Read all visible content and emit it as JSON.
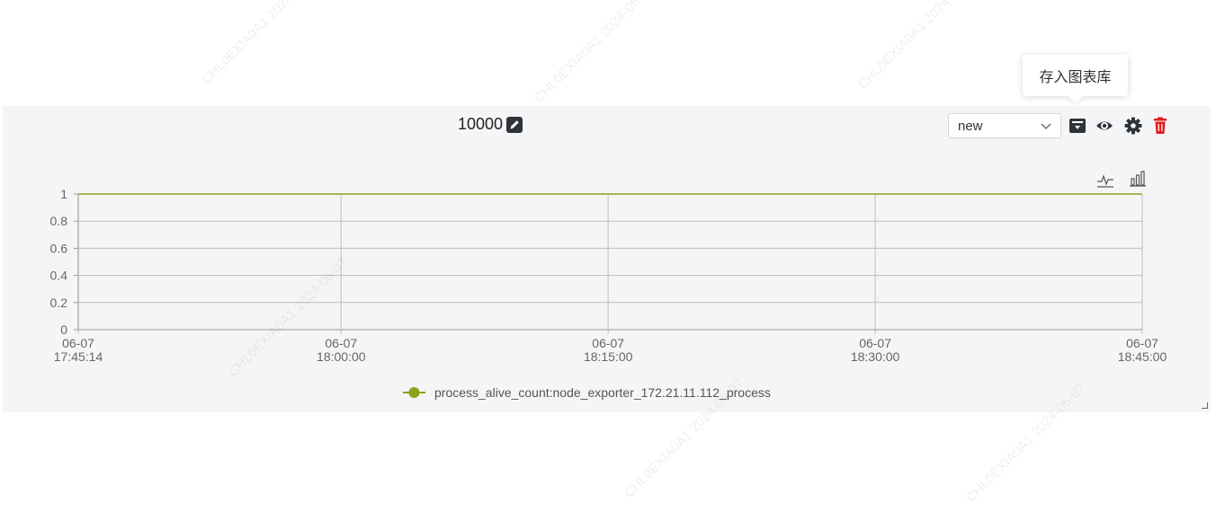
{
  "tooltip": {
    "text": "存入图表库"
  },
  "panel": {
    "title": "10000",
    "select_value": "new"
  },
  "colors": {
    "series": "#8fa01c",
    "delete": "#e02020",
    "icon": "#2f3338",
    "grid": "#c8c8c8",
    "panel_bg": "#f4f5f7"
  },
  "icons": {
    "title": "edit-icon",
    "select": "chevron-down-icon",
    "save": "save-to-library-icon",
    "view": "eye-icon",
    "settings": "gear-icon",
    "delete": "trash-icon",
    "chart_line": "line-chart-toggle-icon",
    "chart_bar": "bar-chart-toggle-icon"
  },
  "chart_data": {
    "type": "line",
    "title": "",
    "xlabel": "",
    "ylabel": "",
    "ylim": [
      0,
      1
    ],
    "yticks": [
      "0",
      "0.2",
      "0.4",
      "0.6",
      "0.8",
      "1"
    ],
    "xticks": [
      {
        "date": "06-07",
        "time": "17:45:14"
      },
      {
        "date": "06-07",
        "time": "18:00:00"
      },
      {
        "date": "06-07",
        "time": "18:15:00"
      },
      {
        "date": "06-07",
        "time": "18:30:00"
      },
      {
        "date": "06-07",
        "time": "18:45:00"
      }
    ],
    "x_range": [
      "06-07 17:45:14",
      "06-07 18:45:00"
    ],
    "grid": true,
    "legend_position": "bottom-center",
    "series": [
      {
        "name": "process_alive_count:node_exporter_172.21.11.112_process",
        "color": "#8fa01c",
        "x": [
          "06-07 17:45:14",
          "06-07 18:45:00"
        ],
        "values": [
          1,
          1
        ]
      }
    ]
  }
}
